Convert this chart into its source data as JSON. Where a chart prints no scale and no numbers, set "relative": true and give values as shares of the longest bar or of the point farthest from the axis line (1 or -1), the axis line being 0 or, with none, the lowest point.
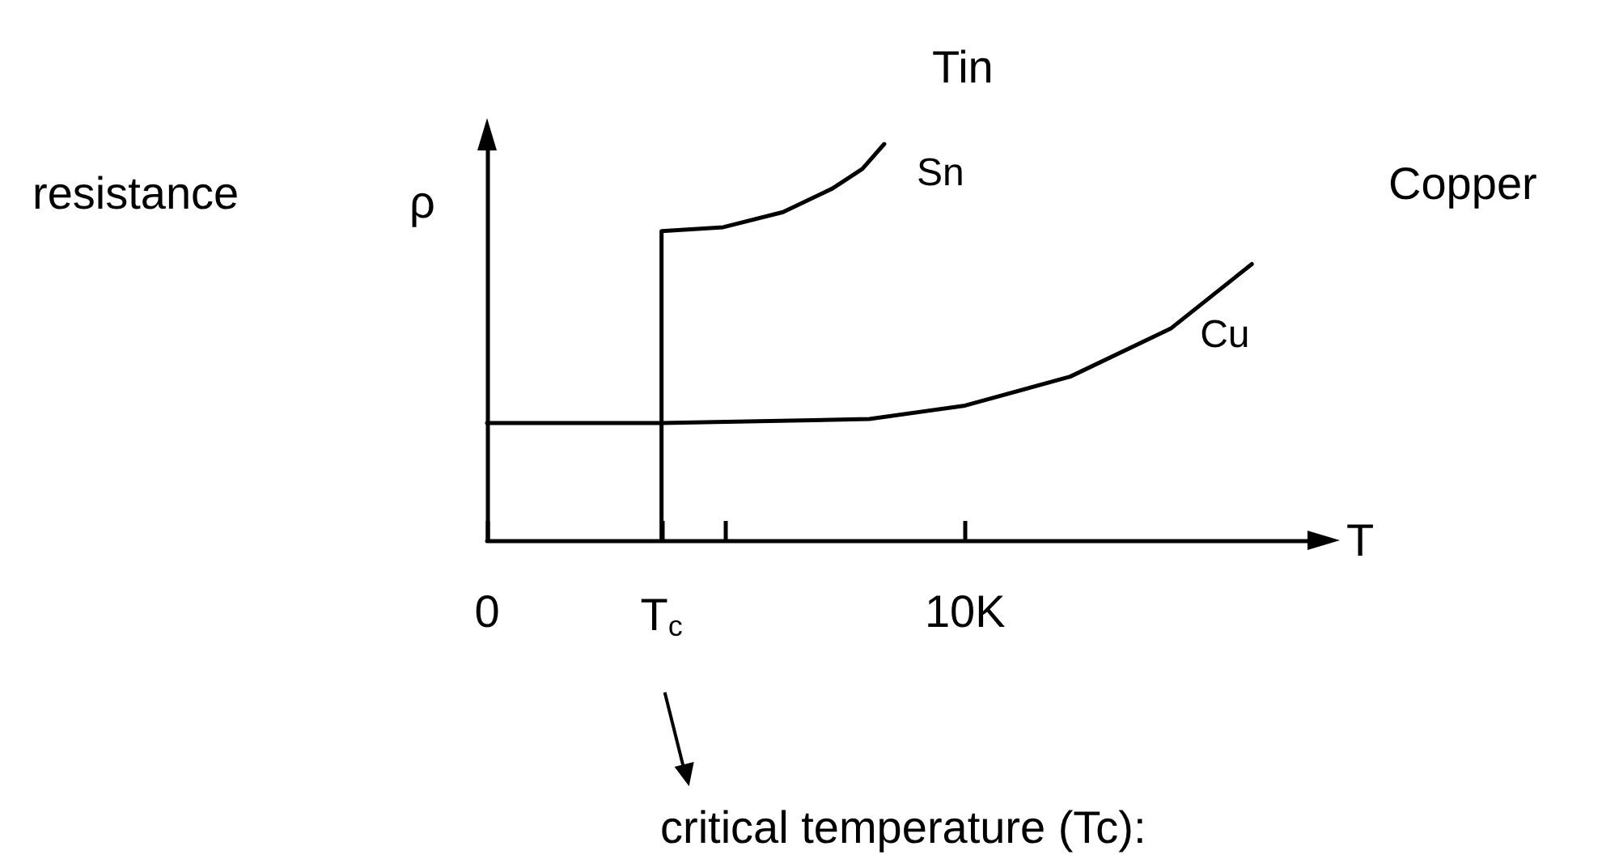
{
  "chart_data": {
    "type": "line",
    "relative": true,
    "xlabel": "T",
    "ylabel": "ρ",
    "annotations": [
      "Tin",
      "Copper",
      "resistance",
      "critical temperature (Tc):"
    ],
    "xlim": [
      0,
      17.3
    ],
    "xticks": [
      0,
      {
        "value": 3.65,
        "label": "T$_{c}$"
      },
      {
        "value": 5,
        "label": null
      },
      {
        "value": 10,
        "label": "10K"
      }
    ],
    "series": [
      {
        "name": "Sn",
        "color": "#000000",
        "x": [
          3.65,
          3.65,
          4.94,
          6.19,
          7.23,
          7.85,
          8.31
        ],
        "values": [
          0,
          0.78,
          0.79,
          0.828,
          0.888,
          0.937,
          1
        ]
      },
      {
        "name": "Cu",
        "color": "#000000",
        "x": [
          0,
          3.65,
          8,
          10,
          12.2,
          14.3,
          16
        ],
        "values": [
          0.296,
          0.296,
          0.306,
          0.34,
          0.413,
          0.534,
          0.697
        ]
      }
    ],
    "grid": false,
    "legend": false,
    "marker": "none",
    "line_style": "solid"
  }
}
